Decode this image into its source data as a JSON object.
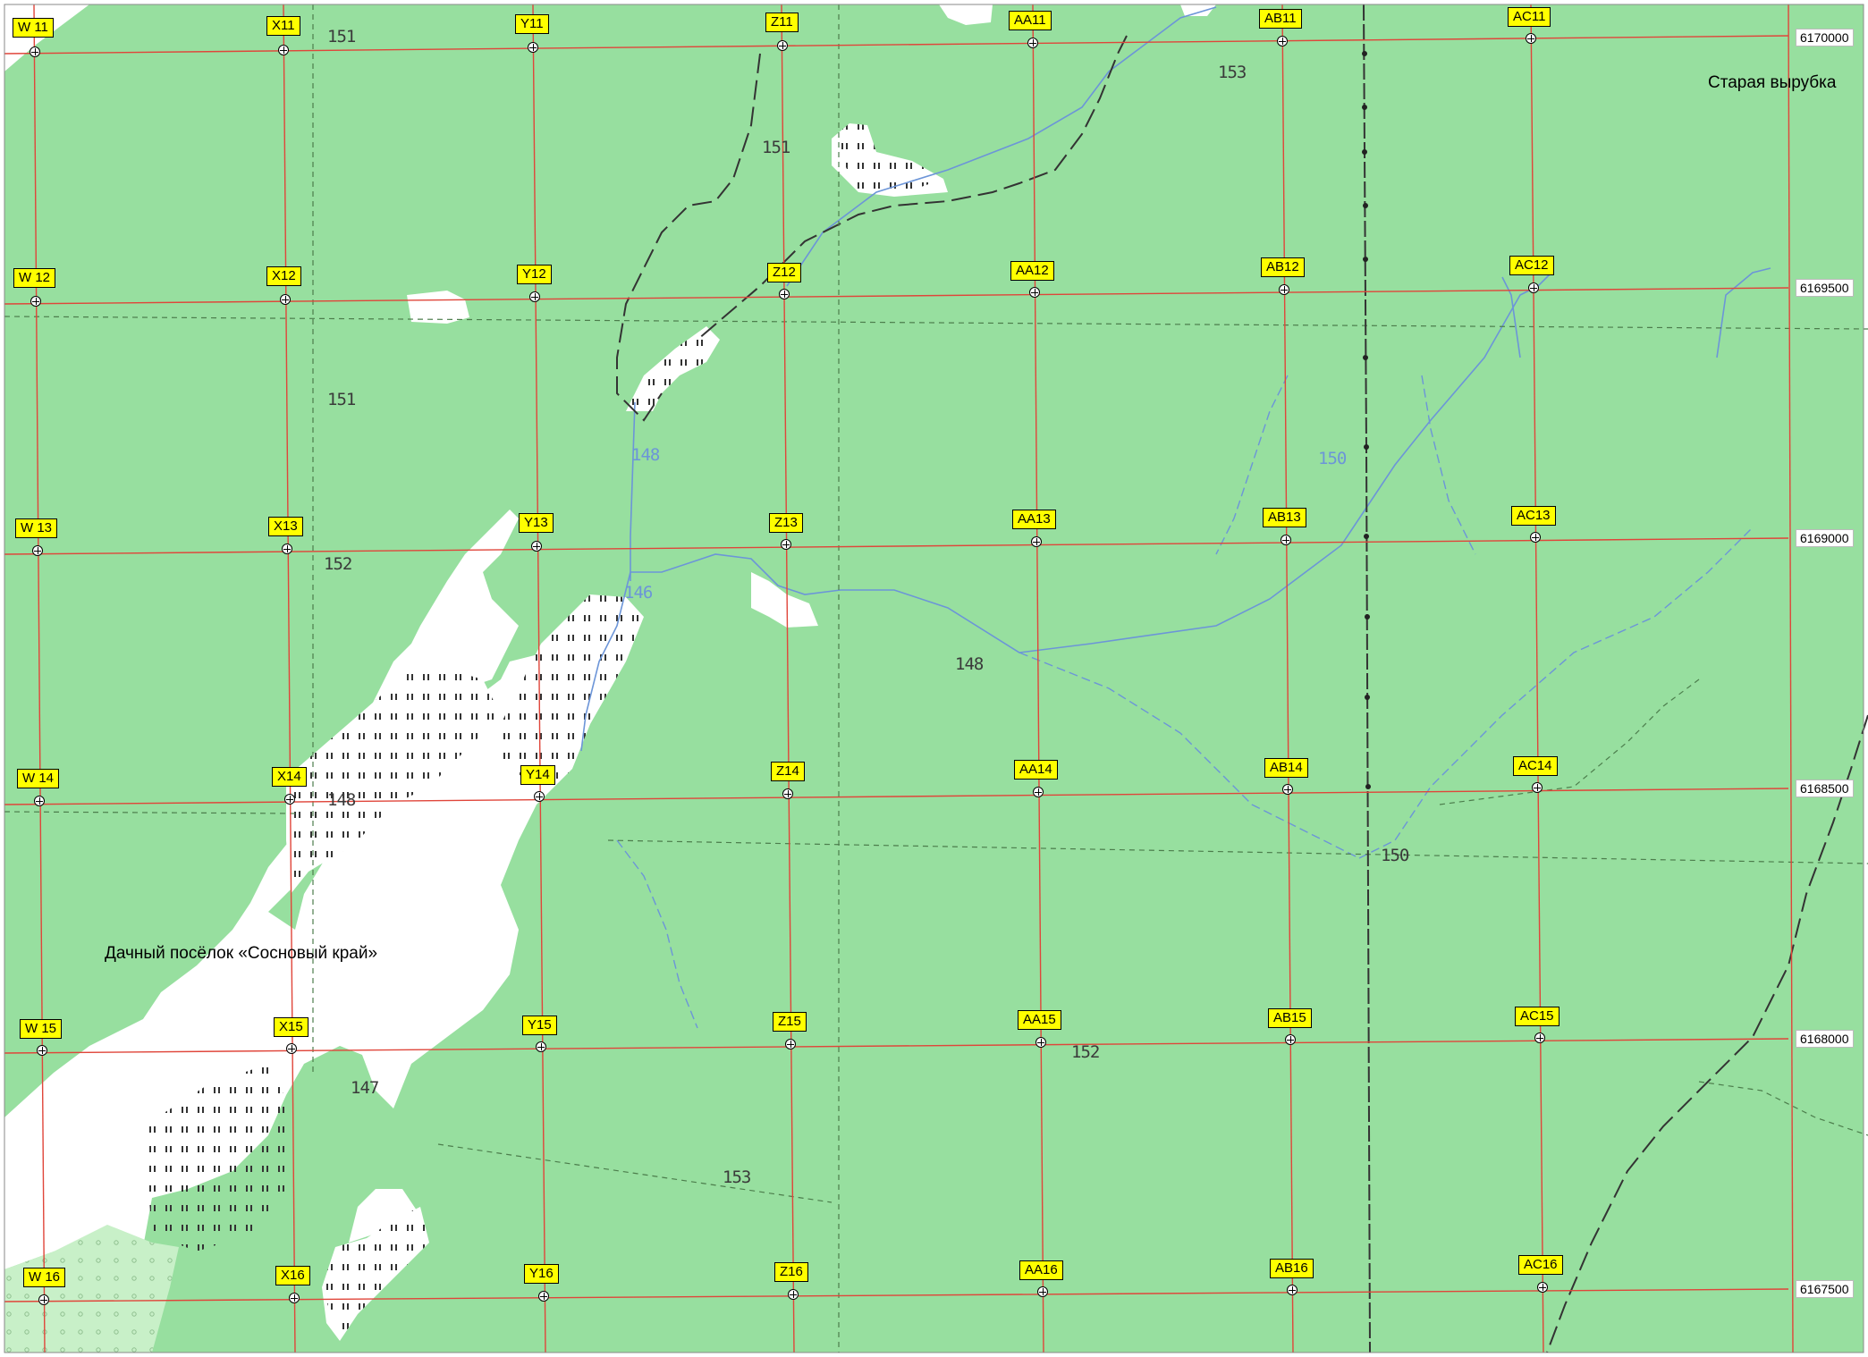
{
  "map": {
    "colors": {
      "forest": "#97df9f",
      "clearing": "#ffffff",
      "grid_line": "#e0453a",
      "water": "#6c95d8",
      "label_bg": "#ffff00",
      "sparse_forest": "#c8f0c8"
    },
    "grid_columns": [
      "W",
      "X",
      "Y",
      "Z",
      "AA",
      "AB",
      "AC"
    ],
    "grid_rows": [
      "11",
      "12",
      "13",
      "14",
      "15",
      "16"
    ],
    "cells": [
      [
        "W 11",
        "X11",
        "Y11",
        "Z11",
        "AA11",
        "AB11",
        "AC11"
      ],
      [
        "W 12",
        "X12",
        "Y12",
        "Z12",
        "AA12",
        "AB12",
        "AC12"
      ],
      [
        "W 13",
        "X13",
        "Y13",
        "Z13",
        "AA13",
        "AB13",
        "AC13"
      ],
      [
        "W 14",
        "X14",
        "Y14",
        "Z14",
        "AA14",
        "AB14",
        "AC14"
      ],
      [
        "W 15",
        "X15",
        "Y15",
        "Z15",
        "AA15",
        "AB15",
        "AC15"
      ],
      [
        "W 16",
        "X16",
        "Y16",
        "Z16",
        "AA16",
        "AB16",
        "AC16"
      ]
    ],
    "northing_labels": [
      "6170000",
      "6169500",
      "6169000",
      "6168500",
      "6168000",
      "6167500"
    ],
    "place_names": {
      "dacha": "Дачный посёлок «Сосновый край»",
      "old_clearing": "Старая вырубка"
    },
    "elevations": [
      "151",
      "153",
      "151",
      "151",
      "148",
      "150",
      "152",
      "146",
      "148",
      "148",
      "150",
      "152",
      "147",
      "153"
    ]
  }
}
